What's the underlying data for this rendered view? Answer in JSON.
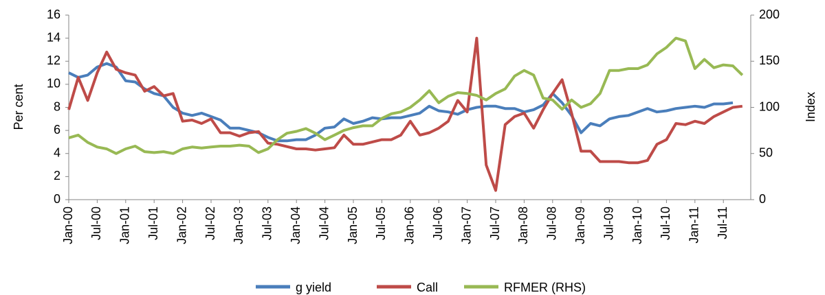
{
  "chart_data": {
    "type": "line",
    "categories": [
      "Jan-00",
      null,
      null,
      "Jul-00",
      null,
      null,
      "Jan-01",
      null,
      null,
      "Jul-01",
      null,
      null,
      "Jan-02",
      null,
      null,
      "Jul-02",
      null,
      null,
      "Jan-03",
      null,
      null,
      "Jul-03",
      null,
      null,
      "Jan-04",
      null,
      null,
      "Jul-04",
      null,
      null,
      "Jan-05",
      null,
      null,
      "Jul-05",
      null,
      null,
      "Jan-06",
      null,
      null,
      "Jul-06",
      null,
      null,
      "Jan-07",
      null,
      null,
      "Jul-07",
      null,
      null,
      "Jan-08",
      null,
      null,
      "Jul-08",
      null,
      null,
      "Jan-09",
      null,
      null,
      "Jul-09",
      null,
      null,
      "Jan-10",
      null,
      null,
      "Jul-10",
      null,
      null,
      "Jan-11",
      null,
      null,
      "Jul-11",
      null,
      null
    ],
    "y_label": "Per cent",
    "y2_label": "Index",
    "ylim": [
      0,
      16
    ],
    "yticks": [
      0,
      2,
      4,
      6,
      8,
      10,
      12,
      14,
      16
    ],
    "y2lim": [
      0,
      200
    ],
    "y2ticks": [
      0,
      50,
      100,
      150,
      200
    ],
    "legend": "bottom",
    "series": [
      {
        "name": "g  yield",
        "color": "#4a7ebb",
        "values": [
          11.0,
          10.6,
          10.8,
          11.5,
          11.8,
          11.5,
          10.3,
          10.2,
          9.6,
          9.2,
          9.0,
          8.0,
          7.5,
          7.3,
          7.5,
          7.2,
          6.9,
          6.2,
          6.2,
          6.0,
          5.8,
          5.4,
          5.1,
          5.1,
          5.2,
          5.2,
          5.6,
          6.2,
          6.3,
          7.0,
          6.6,
          6.8,
          7.1,
          7.0,
          7.1,
          7.1,
          7.3,
          7.5,
          8.1,
          7.7,
          7.6,
          7.4,
          7.8,
          8.0,
          8.1,
          8.1,
          7.9,
          7.9,
          7.6,
          7.8,
          8.2,
          9.2,
          8.4,
          7.3,
          5.8,
          6.6,
          6.4,
          7.0,
          7.2,
          7.3,
          7.6,
          7.9,
          7.6,
          7.7,
          7.9,
          8.0,
          8.1,
          8.0,
          8.3,
          8.3,
          8.4,
          null
        ]
      },
      {
        "name": "Call",
        "color": "#be4b48",
        "values": [
          7.8,
          10.6,
          8.6,
          11.0,
          12.8,
          11.3,
          11.0,
          10.8,
          9.4,
          9.8,
          9.0,
          9.2,
          6.8,
          6.9,
          6.6,
          7.0,
          5.8,
          5.8,
          5.5,
          5.8,
          5.9,
          4.9,
          4.8,
          4.6,
          4.4,
          4.4,
          4.3,
          4.4,
          4.5,
          5.6,
          4.8,
          4.8,
          5.0,
          5.2,
          5.2,
          5.6,
          6.8,
          5.6,
          5.8,
          6.2,
          6.8,
          8.6,
          7.6,
          14.0,
          3.0,
          0.8,
          6.5,
          7.2,
          7.5,
          6.2,
          7.8,
          9.2,
          10.4,
          7.5,
          4.2,
          4.2,
          3.3,
          3.3,
          3.3,
          3.2,
          3.2,
          3.4,
          4.8,
          5.2,
          6.6,
          6.5,
          6.8,
          6.6,
          7.2,
          7.6,
          8.0,
          8.1
        ]
      },
      {
        "name": "RFMER (RHS)",
        "color": "#98b954",
        "axis": "y2",
        "values": [
          67,
          70,
          62,
          57,
          55,
          50,
          55,
          58,
          52,
          51,
          52,
          50,
          55,
          57,
          56,
          57,
          58,
          58,
          59,
          58,
          51,
          55,
          65,
          72,
          74,
          77,
          72,
          65,
          70,
          75,
          78,
          80,
          80,
          88,
          93,
          95,
          100,
          108,
          118,
          105,
          112,
          116,
          115,
          113,
          108,
          115,
          120,
          134,
          140,
          135,
          110,
          108,
          98,
          108,
          100,
          104,
          115,
          140,
          140,
          142,
          142,
          146,
          158,
          165,
          175,
          172,
          142,
          152,
          143,
          146,
          145,
          135
        ]
      }
    ]
  }
}
